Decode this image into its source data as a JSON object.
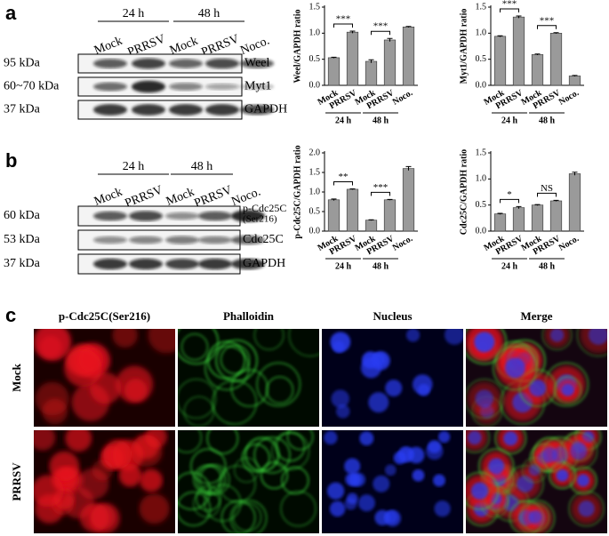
{
  "panels": {
    "a": {
      "label": "a",
      "time_groups": [
        "24 h",
        "48 h"
      ],
      "lanes": [
        "Mock",
        "PRRSV",
        "Mock",
        "PRRSV",
        "Noco."
      ],
      "blots": [
        {
          "size": "95 kDa",
          "protein": "Weel"
        },
        {
          "size": "60~70 kDa",
          "protein": "Myt1"
        },
        {
          "size": "37 kDa",
          "protein": "GAPDH"
        }
      ]
    },
    "b": {
      "label": "b",
      "time_groups": [
        "24 h",
        "48 h"
      ],
      "lanes": [
        "Mock",
        "PRRSV",
        "Mock",
        "PRRSV",
        "Noco."
      ],
      "blots": [
        {
          "size": "60 kDa",
          "protein": "p-Cdc25C",
          "protein_note": "(Ser216)"
        },
        {
          "size": "53 kDa",
          "protein": "Cdc25C"
        },
        {
          "size": "37 kDa",
          "protein": "GAPDH"
        }
      ]
    },
    "c": {
      "label": "c",
      "columns": [
        "p-Cdc25C(Ser216)",
        "Phalloidin",
        "Nucleus",
        "Merge"
      ],
      "rows": [
        "Mock",
        "PRRSV"
      ]
    }
  },
  "chart_data": [
    {
      "type": "bar",
      "y_label": "Weel/GAPDH ratio",
      "categories": [
        "Mock",
        "PRRSV",
        "Mock",
        "PRRSV",
        "Noco."
      ],
      "groups": [
        "24 h",
        "48 h"
      ],
      "values": [
        0.53,
        1.02,
        0.46,
        0.87,
        1.12
      ],
      "errors": [
        0.01,
        0.02,
        0.03,
        0.03,
        0.01
      ],
      "color": "#9a9a9a",
      "ylim": [
        0,
        1.5
      ],
      "yticks": [
        {
          "value": 0,
          "label": "0.0"
        },
        0.5,
        {
          "value": 1,
          "label": "1.0"
        },
        1.5
      ],
      "annotations": [
        "***",
        "***"
      ]
    },
    {
      "type": "bar",
      "y_label": "Myt1/GAPDH ratio",
      "categories": [
        "Mock",
        "PRRSV",
        "Mock",
        "PRRSV",
        "Noco."
      ],
      "groups": [
        "24 h",
        "48 h"
      ],
      "values": [
        0.94,
        1.31,
        0.59,
        1.0,
        0.18
      ],
      "errors": [
        0.01,
        0.02,
        0.01,
        0.01,
        0.01
      ],
      "color": "#9a9a9a",
      "ylim": [
        0,
        1.5
      ],
      "yticks": [
        {
          "value": 0,
          "label": "0.0"
        },
        0.5,
        {
          "value": 1,
          "label": "1.0"
        },
        1.5
      ],
      "annotations": [
        "***",
        "***"
      ]
    },
    {
      "type": "bar",
      "y_label": "p-Cdc25C/GAPDH ratio",
      "categories": [
        "Mock",
        "PRRSV",
        "Mock",
        "PRRSV",
        "Noco."
      ],
      "groups": [
        "24 h",
        "48 h"
      ],
      "values": [
        0.8,
        1.07,
        0.28,
        0.8,
        1.6
      ],
      "errors": [
        0.02,
        0.01,
        0.01,
        0.01,
        0.05
      ],
      "color": "#9a9a9a",
      "ylim": [
        0,
        2
      ],
      "yticks": [
        {
          "value": 0,
          "label": "0.0"
        },
        0.5,
        {
          "value": 1,
          "label": "1.0"
        },
        1.5,
        {
          "value": 2,
          "label": "2.0"
        }
      ],
      "annotations": [
        "**",
        "***"
      ]
    },
    {
      "type": "bar",
      "y_label": "Cdc25C/GAPDH ratio",
      "categories": [
        "Mock",
        "PRRSV",
        "Mock",
        "PRRSV",
        "Noco."
      ],
      "groups": [
        "24 h",
        "48 h"
      ],
      "values": [
        0.33,
        0.45,
        0.5,
        0.58,
        1.1
      ],
      "errors": [
        0.01,
        0.02,
        0.01,
        0.01,
        0.03
      ],
      "color": "#9a9a9a",
      "ylim": [
        0,
        1.5
      ],
      "yticks": [
        {
          "value": 0,
          "label": "0.0"
        },
        0.5,
        {
          "value": 1,
          "label": "1.0"
        },
        1.5
      ],
      "annotations": [
        "*",
        "NS"
      ]
    }
  ]
}
